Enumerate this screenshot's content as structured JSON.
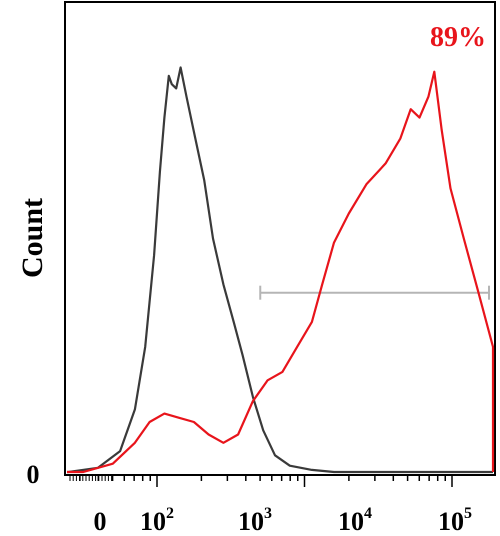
{
  "chart_data": {
    "type": "line",
    "ylabel": "Count",
    "y_zero_label": "0",
    "x_tick_labels": [
      {
        "base": "0",
        "exp": ""
      },
      {
        "base": "10",
        "exp": "2"
      },
      {
        "base": "10",
        "exp": "3"
      },
      {
        "base": "10",
        "exp": "4"
      },
      {
        "base": "10",
        "exp": "5"
      }
    ],
    "annotation": {
      "text": "89%",
      "color": "#e8141b"
    },
    "gate": {
      "from_log": 2.7,
      "to_log": 5.25,
      "level": 0.43,
      "color": "#b5b5b5"
    },
    "axis_range_log": [
      0.5,
      5.25
    ],
    "ylim": [
      0,
      1
    ],
    "series": [
      {
        "color": "#3a3a3a",
        "points": [
          [
            0.5,
            0
          ],
          [
            1.4,
            0
          ],
          [
            1.6,
            0.01
          ],
          [
            1.75,
            0.05
          ],
          [
            1.85,
            0.15
          ],
          [
            1.92,
            0.3
          ],
          [
            1.98,
            0.52
          ],
          [
            2.02,
            0.72
          ],
          [
            2.05,
            0.85
          ],
          [
            2.08,
            0.95
          ],
          [
            2.1,
            0.93
          ],
          [
            2.13,
            0.92
          ],
          [
            2.16,
            0.97
          ],
          [
            2.2,
            0.9
          ],
          [
            2.26,
            0.8
          ],
          [
            2.32,
            0.7
          ],
          [
            2.38,
            0.56
          ],
          [
            2.45,
            0.45
          ],
          [
            2.52,
            0.36
          ],
          [
            2.58,
            0.28
          ],
          [
            2.65,
            0.18
          ],
          [
            2.72,
            0.1
          ],
          [
            2.8,
            0.04
          ],
          [
            2.9,
            0.015
          ],
          [
            3.05,
            0.005
          ],
          [
            3.2,
            0
          ],
          [
            5.25,
            0
          ]
        ]
      },
      {
        "color": "#e8141b",
        "points": [
          [
            0.5,
            0
          ],
          [
            1.5,
            0
          ],
          [
            1.7,
            0.02
          ],
          [
            1.85,
            0.07
          ],
          [
            1.95,
            0.12
          ],
          [
            2.05,
            0.14
          ],
          [
            2.15,
            0.13
          ],
          [
            2.25,
            0.12
          ],
          [
            2.35,
            0.09
          ],
          [
            2.45,
            0.07
          ],
          [
            2.55,
            0.09
          ],
          [
            2.65,
            0.17
          ],
          [
            2.75,
            0.22
          ],
          [
            2.85,
            0.24
          ],
          [
            2.95,
            0.3
          ],
          [
            3.05,
            0.36
          ],
          [
            3.12,
            0.45
          ],
          [
            3.2,
            0.55
          ],
          [
            3.3,
            0.62
          ],
          [
            3.42,
            0.69
          ],
          [
            3.55,
            0.74
          ],
          [
            3.65,
            0.8
          ],
          [
            3.72,
            0.87
          ],
          [
            3.78,
            0.85
          ],
          [
            3.84,
            0.9
          ],
          [
            3.88,
            0.96
          ],
          [
            3.93,
            0.82
          ],
          [
            3.99,
            0.68
          ],
          [
            4.08,
            0.56
          ],
          [
            4.18,
            0.43
          ],
          [
            4.28,
            0.3
          ],
          [
            4.38,
            0.19
          ],
          [
            4.48,
            0.14
          ],
          [
            4.58,
            0.1
          ],
          [
            4.7,
            0.07
          ],
          [
            4.82,
            0.04
          ],
          [
            4.95,
            0.015
          ],
          [
            5.1,
            0.005
          ],
          [
            5.25,
            0
          ]
        ]
      }
    ]
  }
}
